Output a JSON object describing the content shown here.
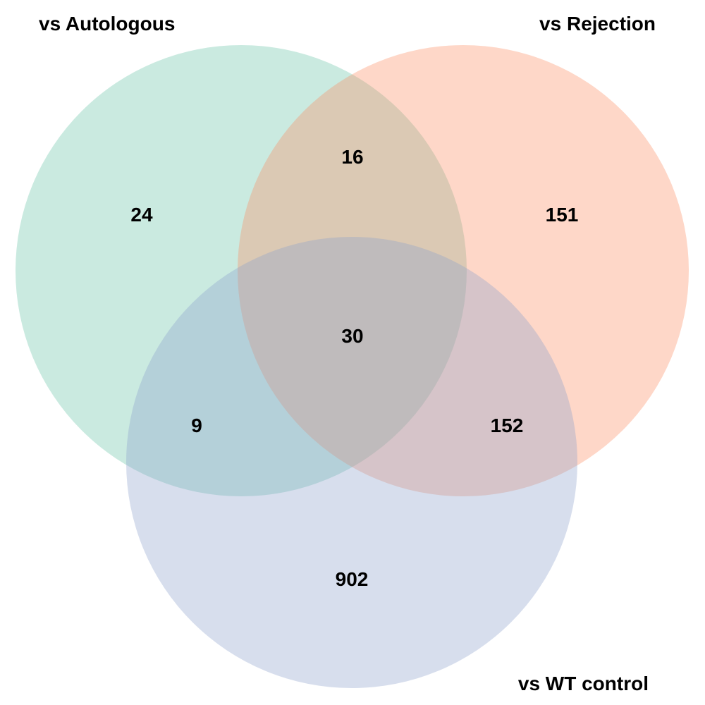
{
  "sets": [
    {
      "key": "A",
      "label": "vs Autologous",
      "color": "#66C2A5"
    },
    {
      "key": "B",
      "label": "vs Rejection",
      "color": "#FC8D62"
    },
    {
      "key": "C",
      "label": "vs WT control",
      "color": "#8DA0CB"
    }
  ],
  "regions": {
    "A_only": "24",
    "B_only": "151",
    "C_only": "902",
    "AB": "16",
    "AC": "9",
    "BC": "152",
    "ABC": "30"
  },
  "fill_opacity": 0.35
}
